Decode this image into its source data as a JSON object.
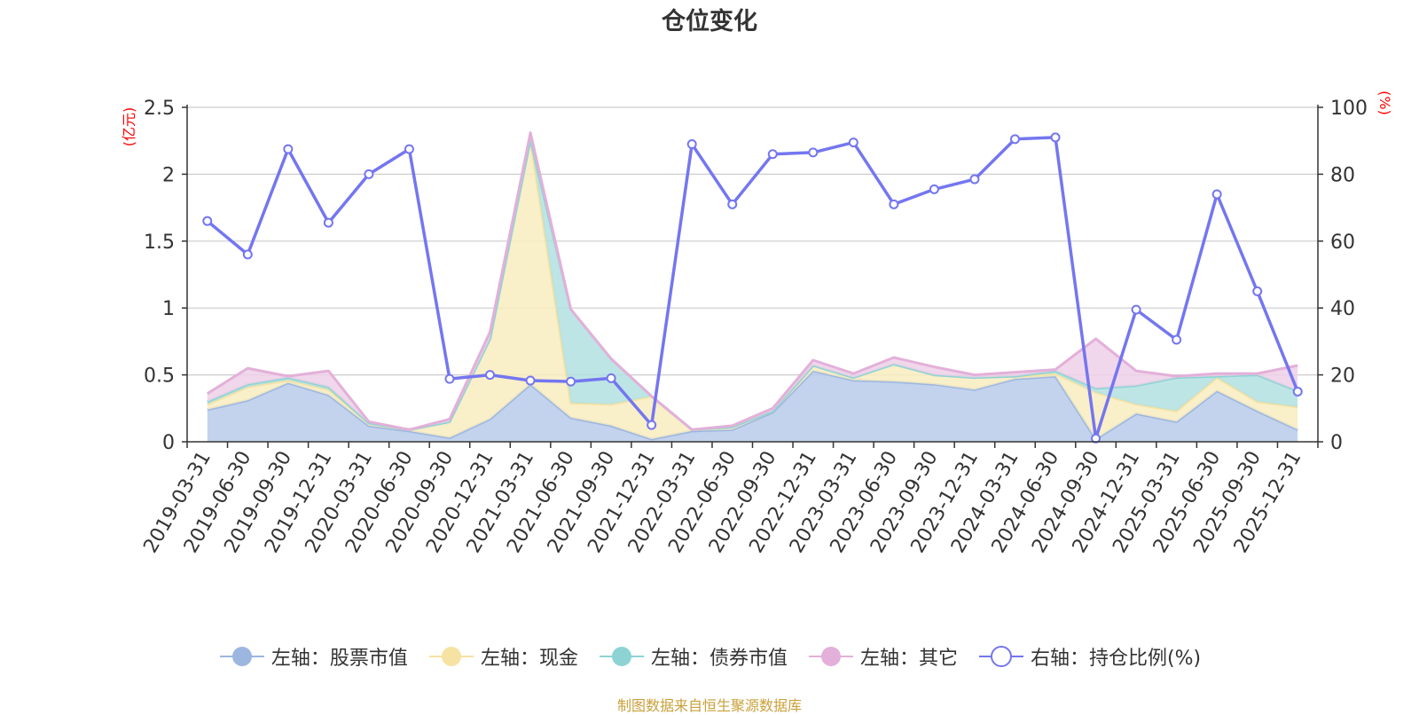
{
  "title": "仓位变化",
  "source": "制图数据来自恒生聚源数据库",
  "colors": {
    "stock": "#9cb6e0",
    "stock_fill": "#b8cbea",
    "cash": "#f6e2a2",
    "cash_fill": "#f8ecc0",
    "bond": "#8ed3d4",
    "bond_fill": "#b3e1e1",
    "other": "#e3b0d9",
    "other_fill": "#eed0e8",
    "ratio": "#7476f0",
    "grid": "#cccccc",
    "axis": "#333333",
    "unit": "#ff0000"
  },
  "chart_data": {
    "type": "area",
    "x": [
      "2019-03-31",
      "2019-06-30",
      "2019-09-30",
      "2019-12-31",
      "2020-03-31",
      "2020-06-30",
      "2020-09-30",
      "2020-12-31",
      "2021-03-31",
      "2021-06-30",
      "2021-09-30",
      "2021-12-31",
      "2022-03-31",
      "2022-06-30",
      "2022-09-30",
      "2022-12-31",
      "2023-03-31",
      "2023-06-30",
      "2023-09-30",
      "2023-12-31",
      "2024-03-31",
      "2024-06-30",
      "2024-09-30",
      "2024-12-31",
      "2025-03-31",
      "2025-06-30",
      "2025-09-30",
      "2025-12-31"
    ],
    "left_axis": {
      "unit": "(亿元)",
      "range": [
        0,
        2.5
      ],
      "ticks": [
        "0",
        "0.5",
        "1",
        "1.5",
        "2",
        "2.5"
      ]
    },
    "right_axis": {
      "unit": "(%)",
      "range": [
        0,
        100
      ],
      "ticks": [
        "0",
        "20",
        "40",
        "60",
        "80",
        "100"
      ]
    },
    "grid": true,
    "legend_position": "bottom",
    "series": [
      {
        "key": "stock",
        "name": "左轴：股票市值",
        "axis": "left",
        "kind": "stacked-area",
        "values": [
          0.24,
          0.31,
          0.44,
          0.35,
          0.12,
          0.08,
          0.03,
          0.17,
          0.43,
          0.18,
          0.12,
          0.02,
          0.08,
          0.09,
          0.22,
          0.53,
          0.46,
          0.45,
          0.43,
          0.39,
          0.47,
          0.49,
          0.02,
          0.21,
          0.15,
          0.38,
          0.23,
          0.09
        ]
      },
      {
        "key": "cash",
        "name": "左轴：现金",
        "axis": "left",
        "kind": "stacked-area",
        "values": [
          0.04,
          0.1,
          0.02,
          0.04,
          0.02,
          0.01,
          0.12,
          0.6,
          1.83,
          0.11,
          0.16,
          0.32,
          0.01,
          0.02,
          0.01,
          0.04,
          0.02,
          0.13,
          0.07,
          0.09,
          0.02,
          0.02,
          0.35,
          0.07,
          0.08,
          0.1,
          0.07,
          0.17
        ]
      },
      {
        "key": "bond",
        "name": "左轴：债券市值",
        "axis": "left",
        "kind": "stacked-area",
        "values": [
          0.02,
          0.02,
          0.02,
          0.02,
          0.0,
          0.0,
          0.0,
          0.0,
          0.0,
          0.7,
          0.34,
          0.0,
          0.0,
          0.0,
          0.0,
          0.0,
          0.0,
          0.0,
          0.0,
          0.0,
          0.0,
          0.02,
          0.03,
          0.14,
          0.25,
          0.01,
          0.2,
          0.12
        ]
      },
      {
        "key": "other",
        "name": "左轴：其它",
        "axis": "left",
        "kind": "stacked-area",
        "values": [
          0.06,
          0.12,
          0.01,
          0.12,
          0.01,
          0.0,
          0.02,
          0.05,
          0.05,
          0.0,
          0.0,
          0.0,
          0.0,
          0.01,
          0.02,
          0.04,
          0.03,
          0.05,
          0.06,
          0.02,
          0.03,
          0.01,
          0.37,
          0.11,
          0.01,
          0.02,
          0.01,
          0.19
        ]
      },
      {
        "key": "ratio",
        "name": "右轴：持仓比例(%)",
        "axis": "right",
        "kind": "line",
        "values": [
          66,
          56,
          87.5,
          65.5,
          80,
          87.5,
          18.8,
          20,
          18.3,
          18,
          19,
          5,
          89,
          71,
          86,
          86.5,
          89.5,
          71,
          75.5,
          78.5,
          90.5,
          91,
          1,
          39.5,
          30.5,
          74,
          45,
          15
        ]
      }
    ]
  }
}
